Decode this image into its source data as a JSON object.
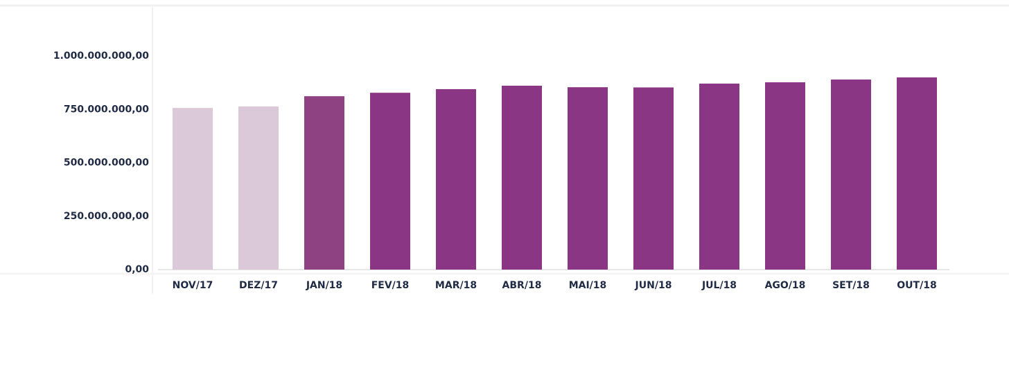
{
  "chart_data": {
    "type": "bar",
    "categories": [
      "NOV/17",
      "DEZ/17",
      "JAN/18",
      "FEV/18",
      "MAR/18",
      "ABR/18",
      "MAI/18",
      "JUN/18",
      "JUL/18",
      "AGO/18",
      "SET/18",
      "OUT/18"
    ],
    "values": [
      757000000,
      764000000,
      812000000,
      828000000,
      845000000,
      861000000,
      854000000,
      853000000,
      871000000,
      877000000,
      890000000,
      900000000
    ],
    "colors": [
      "#dbc8d8",
      "#dbc8d8",
      "#8e4282",
      "#8b3585",
      "#8b3585",
      "#8b3585",
      "#8b3585",
      "#8b3585",
      "#8b3585",
      "#8b3585",
      "#8b3585",
      "#8b3585"
    ],
    "ylim": [
      0,
      1230000000
    ],
    "yticks": [
      {
        "value": 0,
        "label": "0,00"
      },
      {
        "value": 250000000,
        "label": "250.000.000,00"
      },
      {
        "value": 500000000,
        "label": "500.000.000,00"
      },
      {
        "value": 750000000,
        "label": "750.000.000,00"
      },
      {
        "value": 1000000000,
        "label": "1.000.000.000,00"
      }
    ]
  }
}
